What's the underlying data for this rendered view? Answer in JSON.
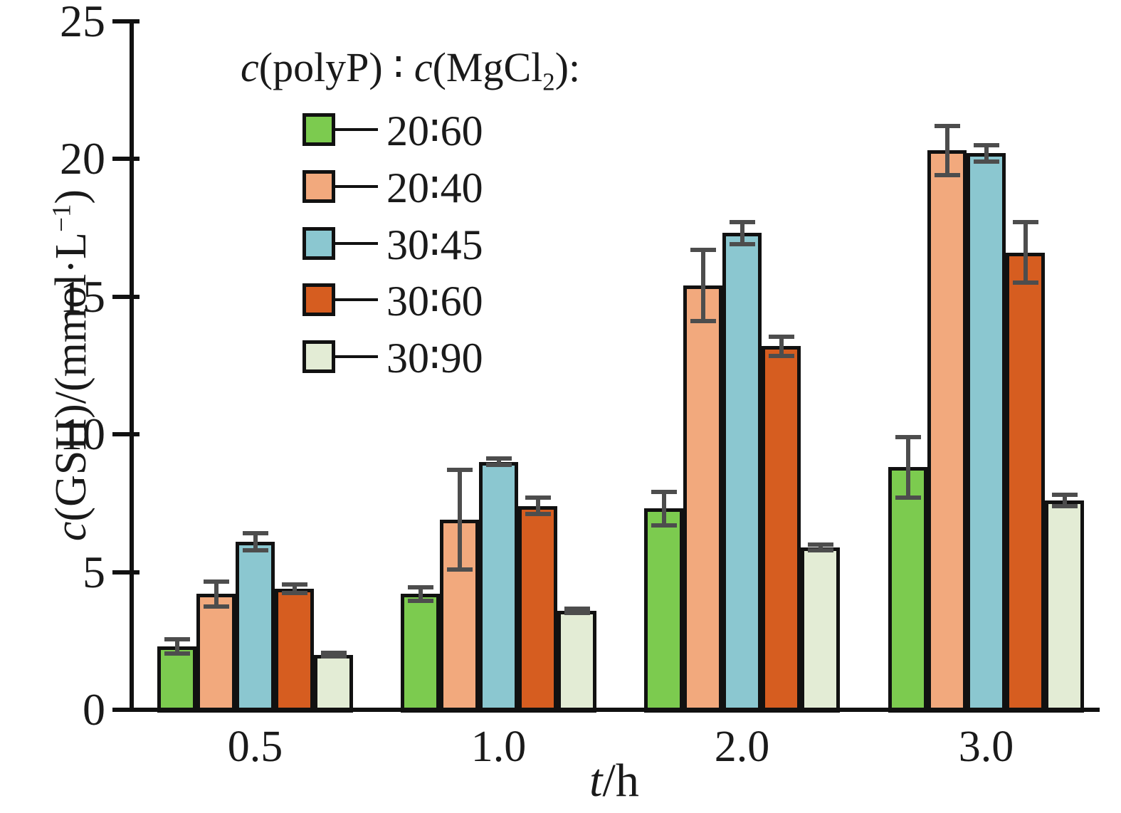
{
  "figure": {
    "y_axis": {
      "label_c": "c",
      "label_mid": "(GSH)/(mmol·L",
      "label_sup": "−1",
      "label_end": ")"
    },
    "x_axis": {
      "label_t": "t",
      "label_rest": "/h"
    },
    "legend": {
      "title_c1": "c",
      "title_mid": "(polyP) ∶ ",
      "title_c2": "c",
      "title_mgcl": "(MgCl",
      "title_sub": "2",
      "title_end": "):"
    }
  },
  "chart_data": {
    "type": "bar",
    "title": "",
    "xlabel": "t/h",
    "ylabel": "c(GSH)/(mmol·L−1)",
    "ylim": [
      0,
      25
    ],
    "yticks": [
      0,
      5,
      10,
      15,
      20,
      25
    ],
    "grid": false,
    "legend_position": "upper-left-inside",
    "legend_title": "c(polyP) ∶ c(MgCl2):",
    "categories": [
      "0.5",
      "1.0",
      "2.0",
      "3.0"
    ],
    "series": [
      {
        "name": "20∶60",
        "color": "#7CCB4F",
        "values": [
          2.3,
          4.2,
          7.3,
          8.8
        ],
        "errors": [
          0.25,
          0.25,
          0.6,
          1.1
        ]
      },
      {
        "name": "20∶40",
        "color": "#F2A97D",
        "values": [
          4.2,
          6.9,
          15.4,
          20.3
        ],
        "errors": [
          0.45,
          1.8,
          1.3,
          0.9
        ]
      },
      {
        "name": "30∶45",
        "color": "#8BC7D0",
        "values": [
          6.1,
          9.0,
          17.3,
          20.2
        ],
        "errors": [
          0.3,
          0.12,
          0.4,
          0.3
        ]
      },
      {
        "name": "30∶60",
        "color": "#D65D20",
        "values": [
          4.4,
          7.4,
          13.2,
          16.6
        ],
        "errors": [
          0.15,
          0.3,
          0.35,
          1.1
        ]
      },
      {
        "name": "30∶90",
        "color": "#E3ECD5",
        "values": [
          2.0,
          3.6,
          5.9,
          7.6
        ],
        "errors": [
          0.06,
          0.08,
          0.1,
          0.2
        ]
      }
    ],
    "style": {
      "axis_color": "#111111",
      "bar_outline_color": "#111111",
      "error_bar_color": "#4d4d4d",
      "background": "#ffffff"
    }
  }
}
